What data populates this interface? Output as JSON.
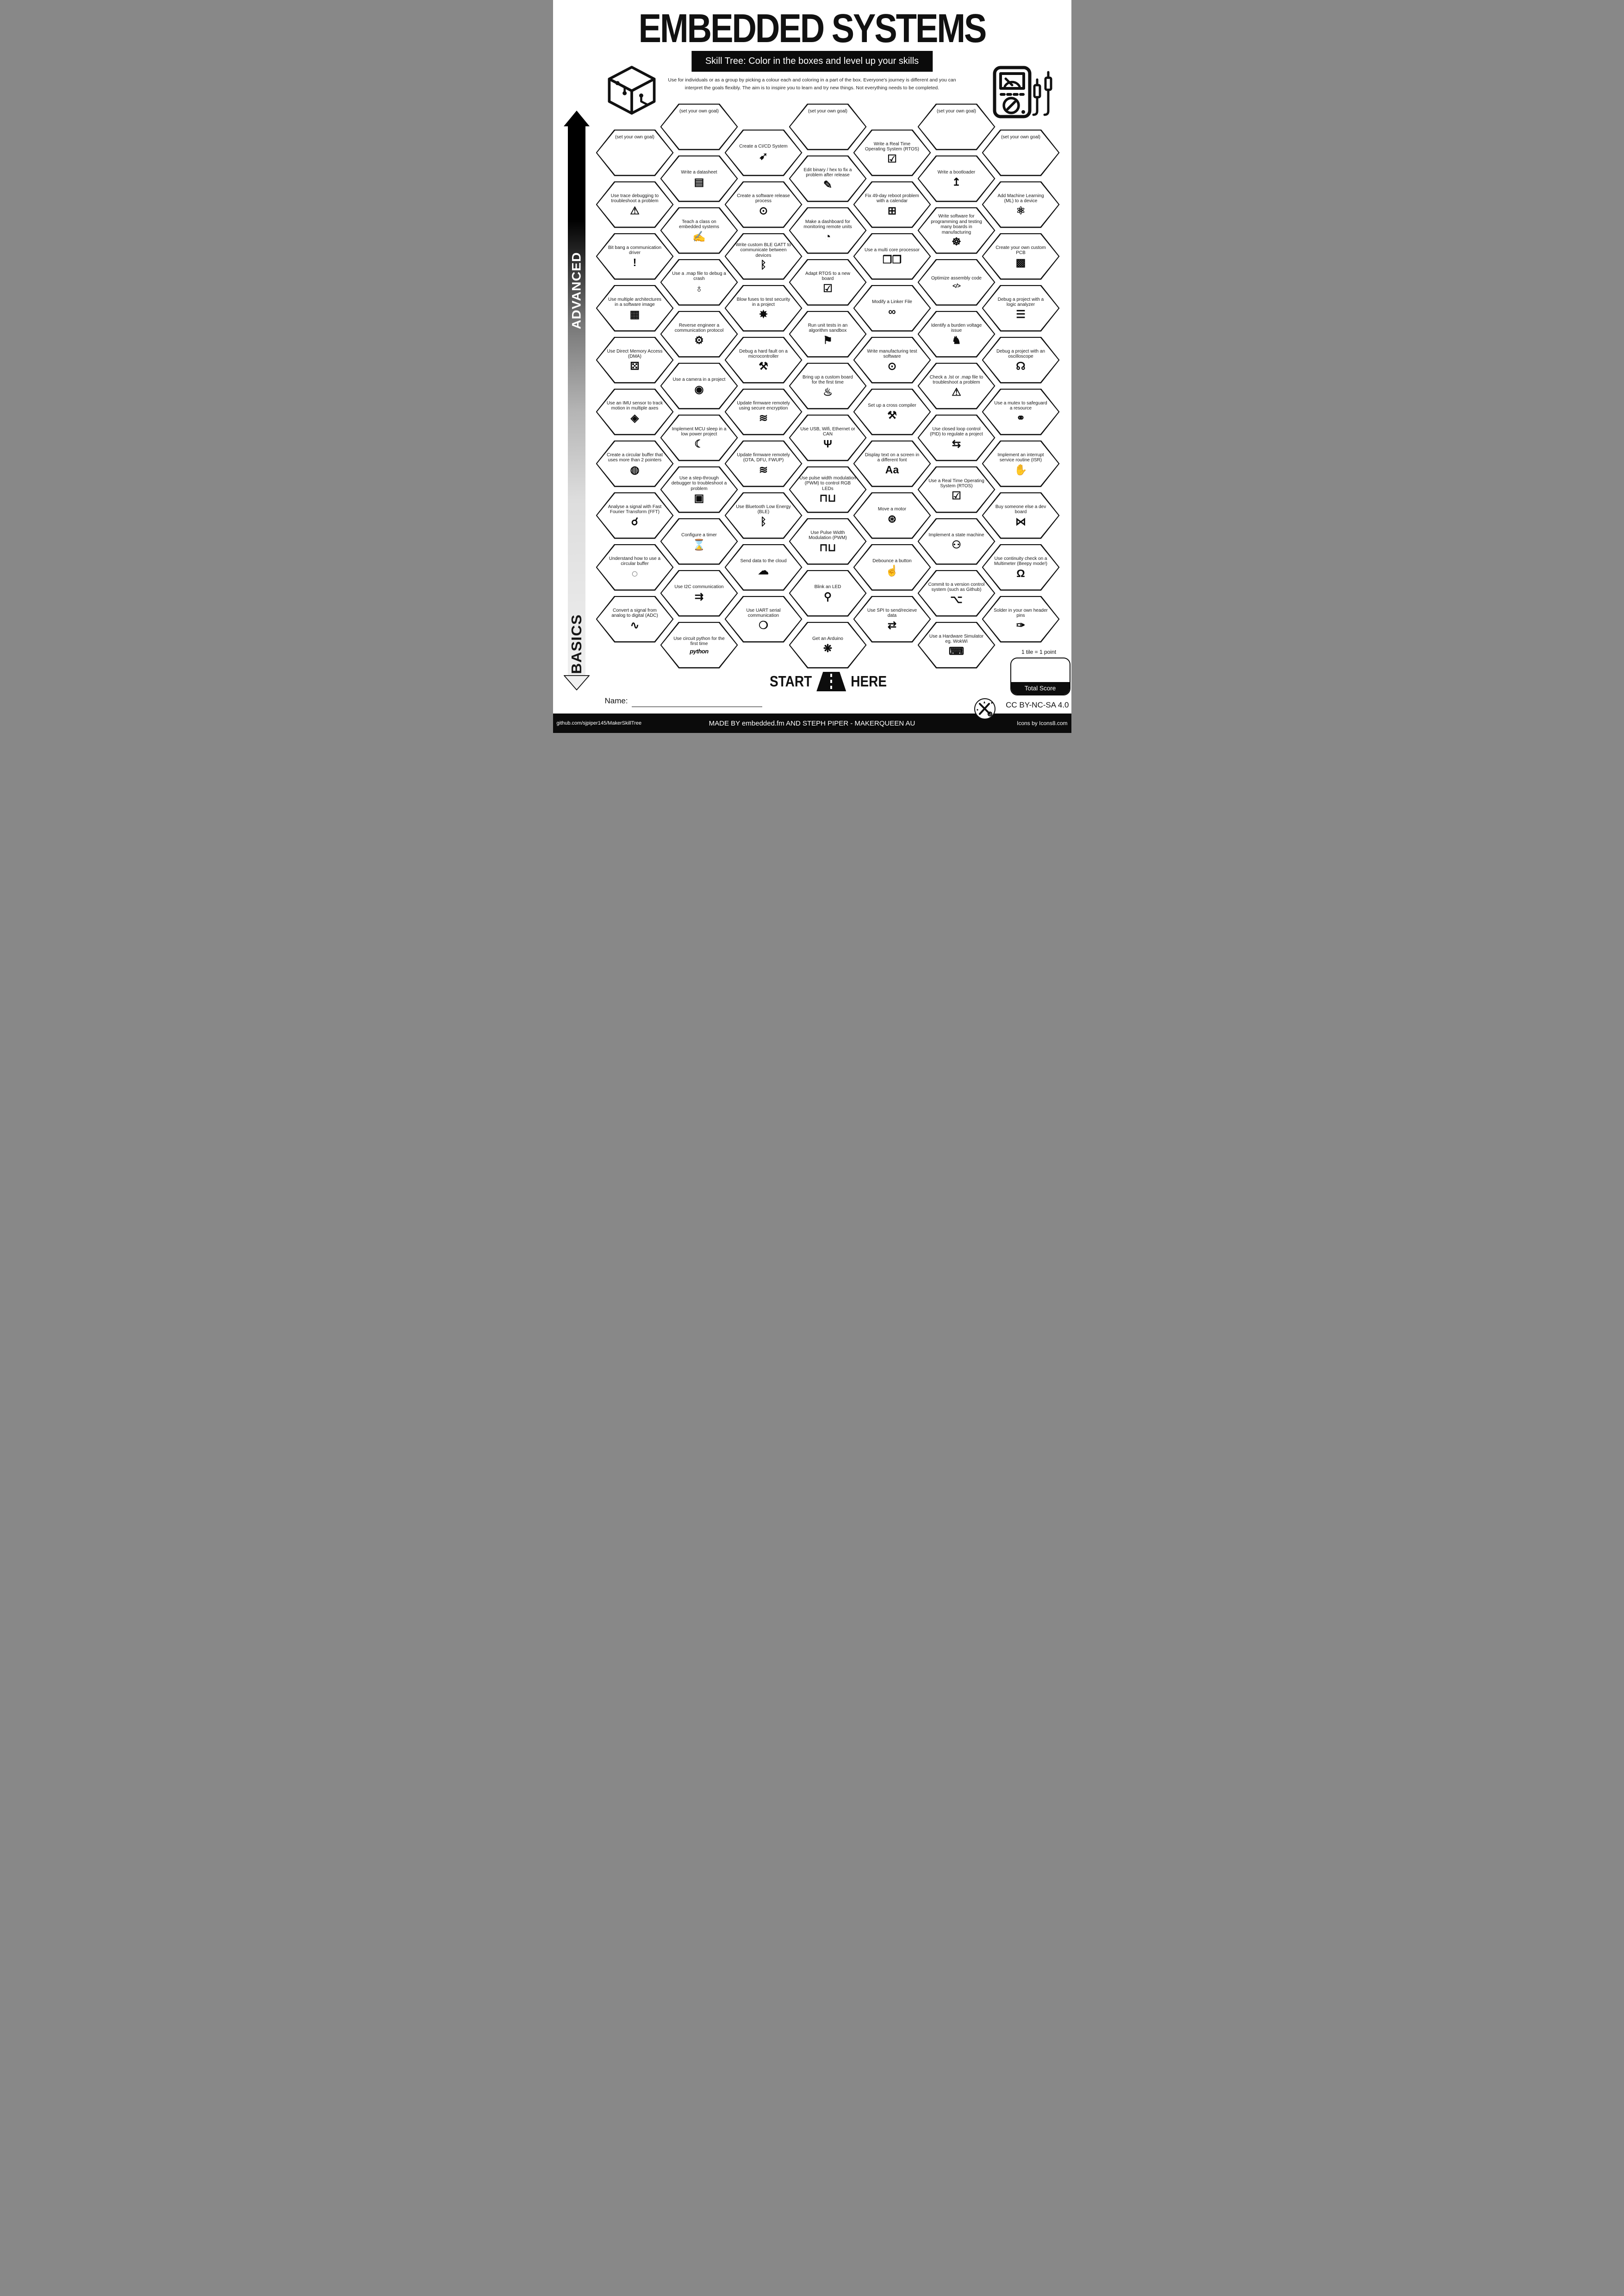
{
  "title": "EMBEDDED SYSTEMS",
  "subtitle": "Skill Tree:  Color in the boxes and level up your skills",
  "intro": {
    "line1": "Use for individuals or as a group by picking a colour each and coloring in a part of the box.  Everyone's journey is different and you can",
    "line2": "interpret the goals flexibly.  The aim is to inspire you to learn and try new things. Not everything needs to be completed."
  },
  "axis": {
    "advanced": "ADVANCED",
    "basics": "BASICS"
  },
  "colors": {
    "ink": "#111111",
    "paper": "#ffffff"
  },
  "goal_label": "(set your own goal)",
  "columns": [
    {
      "stagger": "low",
      "hexes": [
        {
          "label": "(set your own goal)",
          "goal": true
        },
        {
          "label": "Use trace debugging to troubleshoot a problem",
          "icon": "monitor-warning-icon",
          "glyph": "⚠"
        },
        {
          "label": "Bit bang a communication driver",
          "icon": "exclamation-icon",
          "glyph": "!"
        },
        {
          "label": "Use multiple architectures in a software image",
          "icon": "cube-circuit-icon",
          "glyph": "▦"
        },
        {
          "label": "Use Direct Memory Access (DMA)",
          "icon": "dice-icon",
          "glyph": "⚄"
        },
        {
          "label": "Use an IMU sensor to track motion in multiple axes",
          "icon": "cube-axes-icon",
          "glyph": "◈"
        },
        {
          "label": "Create a circular buffer that uses more than 2 pointers",
          "icon": "segmented-ring-icon",
          "glyph": "◍"
        },
        {
          "label": "Analyse a signal with Fast Fourier Transform (FFT)",
          "icon": "magnifier-wave-icon",
          "glyph": "☌"
        },
        {
          "label": "Understand how to use a circular buffer",
          "icon": "ring-icon",
          "glyph": "◌"
        },
        {
          "label": "Convert a signal from analog to digital (ADC)",
          "icon": "analog-digital-wave-icon",
          "glyph": "∿"
        }
      ]
    },
    {
      "stagger": "high",
      "hexes": [
        {
          "label": "(set your own goal)",
          "goal": true
        },
        {
          "label": "Write a datasheet",
          "icon": "document-icon",
          "glyph": "▤"
        },
        {
          "label": "Teach a class on embedded systems",
          "icon": "teacher-icon",
          "glyph": "✍"
        },
        {
          "label": "Use a .map file to debug a crash",
          "icon": "globe-icon",
          "glyph": "♁"
        },
        {
          "label": "Reverse engineer a communication protocol",
          "icon": "gear-rotate-icon",
          "glyph": "⚙"
        },
        {
          "label": "Use a camera in a project",
          "icon": "camera-icon",
          "glyph": "◉"
        },
        {
          "label": "Implement MCU sleep in a low power project",
          "icon": "bed-sleep-icon",
          "glyph": "☾"
        },
        {
          "label": "Use a step-through debugger to troubleshoot a problem",
          "icon": "monitor-bug-icon",
          "glyph": "▣"
        },
        {
          "label": "Configure a timer",
          "icon": "stopwatch-icon",
          "glyph": "⌛"
        },
        {
          "label": "Use I2C communication",
          "icon": "signal-arrows-icon",
          "glyph": "⇉"
        },
        {
          "label": "Use circuit python for the first time",
          "icon": "circuitpython-logo",
          "glyph": "python"
        }
      ]
    },
    {
      "stagger": "low",
      "hexes": [
        {
          "label": "Create a CI/CD System",
          "icon": "rocket-box-icon",
          "glyph": "➹"
        },
        {
          "label": "Create a software release process",
          "icon": "box-disc-icon",
          "glyph": "⊙"
        },
        {
          "label": "Write custom BLE GATT to communicate between devices",
          "icon": "bluetooth-icon",
          "glyph": "ᛒ"
        },
        {
          "label": "Blow fuses to test security in a project",
          "icon": "explosion-icon",
          "glyph": "✸"
        },
        {
          "label": "Debug a hard fault on a microcontroller",
          "icon": "tools-icon",
          "glyph": "⚒"
        },
        {
          "label": "Update firmware remotely using secure encryption",
          "icon": "wifi-lock-icon",
          "glyph": "≋"
        },
        {
          "label": "Update firmware remotely (OTA, DFU, FWUP)",
          "icon": "wifi-icon",
          "glyph": "≋"
        },
        {
          "label": "Use Bluetooth Low Energy (BLE)",
          "icon": "bluetooth-icon",
          "glyph": "ᛒ"
        },
        {
          "label": "Send data to the cloud",
          "icon": "cloud-icon",
          "glyph": "☁"
        },
        {
          "label": "Use UART serial communication",
          "icon": "water-drop-icon",
          "glyph": "❍"
        }
      ]
    },
    {
      "stagger": "high",
      "hexes": [
        {
          "label": "(set your own goal)",
          "goal": true
        },
        {
          "label": "Edit binary / hex to fix a problem after release",
          "icon": "pencil-icon",
          "glyph": "✎"
        },
        {
          "label": "Make a dashboard for monitoring remote units",
          "icon": "gauge-icon",
          "glyph": "◔"
        },
        {
          "label": "Adapt RTOS to a new board",
          "icon": "monitor-check-icon",
          "glyph": "☑"
        },
        {
          "label": "Run unit tests in an algorithm sandbox",
          "icon": "sandbox-icon",
          "glyph": "⚑"
        },
        {
          "label": "Bring up a custom board for the first time",
          "icon": "birthday-cake-icon",
          "glyph": "♨"
        },
        {
          "label": "Use USB, Wifi, Ethernet or CAN",
          "icon": "usb-icon",
          "glyph": "Ψ"
        },
        {
          "label": "Use pulse width modulation (PWM) to control RGB LEDs",
          "icon": "pwm-waves-icon",
          "glyph": "⊓⊔"
        },
        {
          "label": "Use Pulse Width Modulation (PWM)",
          "icon": "pwm-waves-icon",
          "glyph": "⊓⊔"
        },
        {
          "label": "Blink an LED",
          "icon": "led-icon",
          "glyph": "⚲"
        },
        {
          "label": "Get an Arduino",
          "icon": "party-popper-icon",
          "glyph": "❋"
        }
      ]
    },
    {
      "stagger": "low",
      "hexes": [
        {
          "label": "Write a Real Time Operating System (RTOS)",
          "icon": "monitor-check-icon",
          "glyph": "☑"
        },
        {
          "label": "Fix 49-day reboot problem with a calendar",
          "icon": "calendar-icon",
          "glyph": "⊞"
        },
        {
          "label": "Use a multi core processor",
          "icon": "multi-cubes-icon",
          "glyph": "❒❒"
        },
        {
          "label": "Modify a Linker File",
          "icon": "chain-link-icon",
          "glyph": "∞"
        },
        {
          "label": "Write manufacturing test software",
          "icon": "box-disc-icon",
          "glyph": "⊙"
        },
        {
          "label": "Set up a cross compiler",
          "icon": "screwdriver-wrench-icon",
          "glyph": "⚒"
        },
        {
          "label": "Display text on a screen in a different font",
          "icon": "font-Aa-icon",
          "glyph": "Aa"
        },
        {
          "label": "Move a motor",
          "icon": "motor-icon",
          "glyph": "⊛"
        },
        {
          "label": "Debounce a button",
          "icon": "finger-press-icon",
          "glyph": "☝"
        },
        {
          "label": "Use SPI to send/recieve data",
          "icon": "signal-arrows-icon",
          "glyph": "⇄"
        }
      ]
    },
    {
      "stagger": "high",
      "hexes": [
        {
          "label": "(set your own goal)",
          "goal": true
        },
        {
          "label": "Write a bootloader",
          "icon": "forklift-icon",
          "glyph": "↥"
        },
        {
          "label": "Write software for programming and testing many boards in manufacturing",
          "icon": "octopus-icon",
          "glyph": "☸"
        },
        {
          "label": "Optimize assembly code",
          "icon": "code-window-icon",
          "glyph": "</>"
        },
        {
          "label": "Identify a burden voltage issue",
          "icon": "donkey-icon",
          "glyph": "♞"
        },
        {
          "label": "Check a .lst or .map file to troubleshoot a problem",
          "icon": "monitor-warning-icon",
          "glyph": "⚠"
        },
        {
          "label": "Use closed loop control (PID) to regulate a project",
          "icon": "loop-arrows-icon",
          "glyph": "⇆"
        },
        {
          "label": "Use a Real Time Operating System (RTOS)",
          "icon": "monitor-check-icon",
          "glyph": "☑"
        },
        {
          "label": "Implement a state machine",
          "icon": "robot-icon",
          "glyph": "⚇"
        },
        {
          "label": "Commit to a version control system (such as Github)",
          "icon": "git-branch-icon",
          "glyph": "⌥"
        },
        {
          "label": "Use a Hardware Simulator eg. WokWi",
          "icon": "laptop-sim-icon",
          "glyph": "⌨"
        }
      ]
    },
    {
      "stagger": "low",
      "hexes": [
        {
          "label": "(set your own goal)",
          "goal": true
        },
        {
          "label": "Add Machine Learning (ML) to a device",
          "icon": "head-gears-icon",
          "glyph": "⚛"
        },
        {
          "label": "Create your own custom PCB",
          "icon": "pcb-icon",
          "glyph": "▩"
        },
        {
          "label": "Debug a project with a logic analyzer",
          "icon": "logic-analyzer-icon",
          "glyph": "☰"
        },
        {
          "label": "Debug a project with an oscilloscope",
          "icon": "oscilloscope-icon",
          "glyph": "☊"
        },
        {
          "label": "Use a mutex to safeguard a resource",
          "icon": "handshake-icon",
          "glyph": "⚭"
        },
        {
          "label": "Implement an interrupt service routine (ISR)",
          "icon": "hand-icon",
          "glyph": "✋"
        },
        {
          "label": "Buy someone else a dev board",
          "icon": "gift-bow-icon",
          "glyph": "⋈"
        },
        {
          "label": "Use continuity check on a Multimeter (Beepy mode!)",
          "icon": "multimeter-icon",
          "glyph": "Ω"
        },
        {
          "label": "Solder in your own header pins",
          "icon": "soldering-iron-icon",
          "glyph": "✑"
        }
      ]
    }
  ],
  "start_here": {
    "start": "START",
    "here": "HERE"
  },
  "name_label": "Name:",
  "scoring": {
    "tile_note": "1 tile = 1 point",
    "total_label": "Total Score"
  },
  "license": "CC BY-NC-SA 4.0",
  "footer": {
    "left": "github.com/sjpiper145/MakerSkillTree",
    "center": "MADE BY embedded.fm AND STEPH PIPER  -  MAKERQUEEN AU",
    "right": "Icons by Icons8.com"
  }
}
